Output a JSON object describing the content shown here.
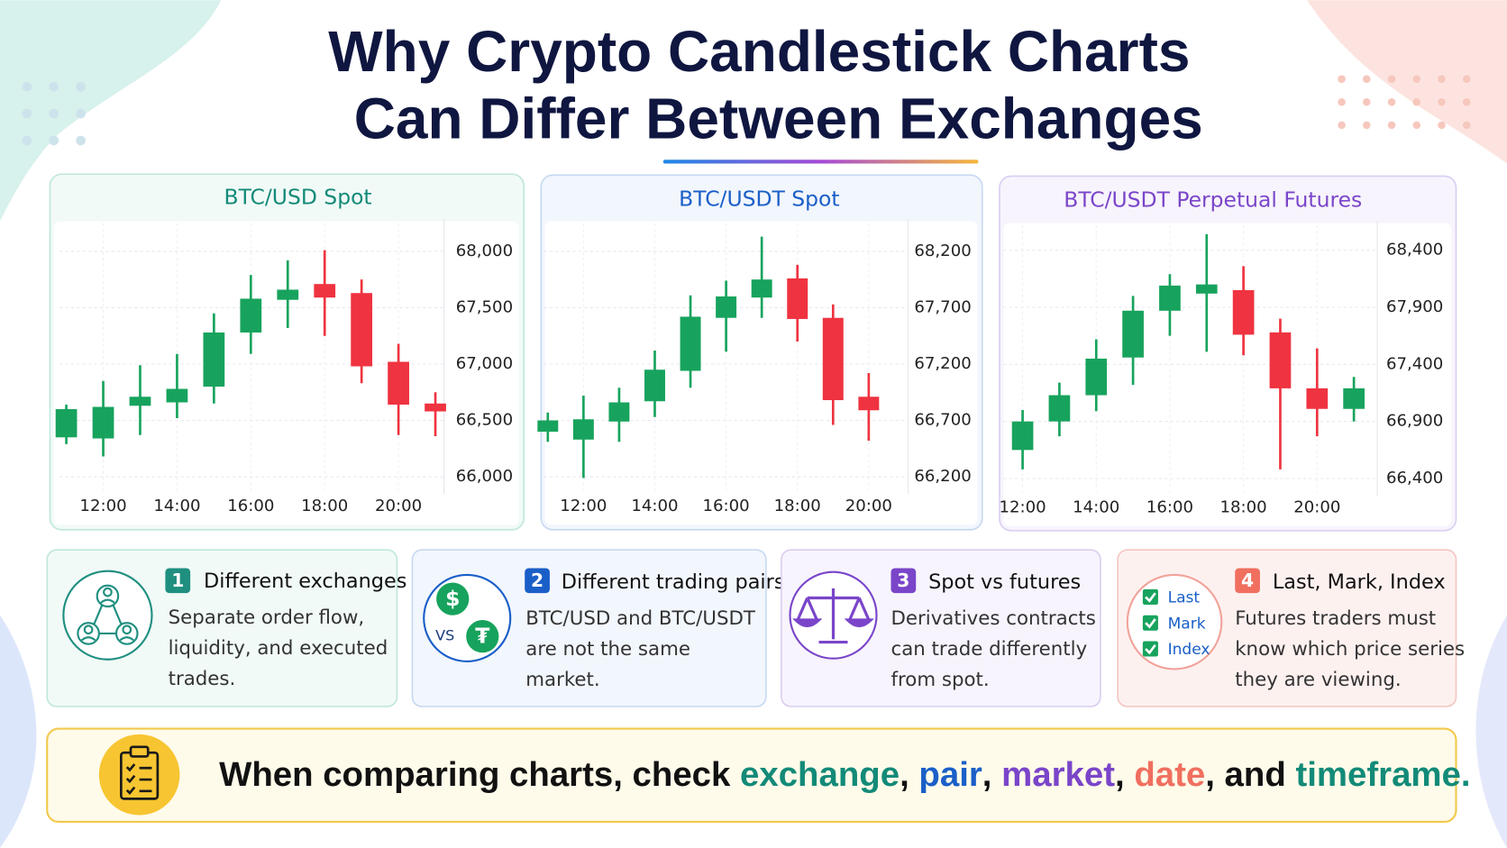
{
  "title": {
    "lines": [
      "Why Crypto Candlestick Charts",
      "Can Differ Between Exchanges"
    ]
  },
  "chart_data": [
    {
      "type": "candlestick",
      "title": "BTC/USD Spot",
      "categories": [
        null,
        "12:00",
        null,
        "14:00",
        null,
        "16:00",
        null,
        "18:00",
        null,
        "20:00",
        null
      ],
      "open": [
        66350,
        66340,
        66630,
        66660,
        66800,
        67280,
        67570,
        67710,
        67630,
        67020,
        66650
      ],
      "high": [
        66640,
        66850,
        66990,
        67090,
        67450,
        67790,
        67920,
        68010,
        67750,
        67180,
        66750
      ],
      "low": [
        66290,
        66180,
        66370,
        66520,
        66650,
        67090,
        67320,
        67250,
        66830,
        66370,
        66360
      ],
      "close": [
        66600,
        66620,
        66710,
        66780,
        67280,
        67580,
        67660,
        67590,
        66980,
        66640,
        66580
      ],
      "up_color": "#17a35d",
      "down_color": "#ef3340",
      "ylim": [
        65880,
        68250
      ],
      "yticks": [
        {
          "value": 66000,
          "label": "66,000"
        },
        {
          "value": 66500,
          "label": "66,500"
        },
        {
          "value": 67000,
          "label": "67,000"
        },
        {
          "value": 67500,
          "label": "67,500"
        },
        {
          "value": 68000,
          "label": "68,000"
        }
      ],
      "grid": true
    },
    {
      "type": "candlestick",
      "title": "BTC/USDT Spot",
      "categories": [
        null,
        "12:00",
        null,
        "14:00",
        null,
        "16:00",
        null,
        "18:00",
        null,
        "20:00"
      ],
      "open": [
        66600,
        66530,
        66690,
        66870,
        67140,
        67610,
        67790,
        67960,
        67610,
        66910
      ],
      "high": [
        66770,
        66920,
        66990,
        67320,
        67810,
        67940,
        68330,
        68080,
        67730,
        67120
      ],
      "low": [
        66510,
        66190,
        66510,
        66730,
        66990,
        67310,
        67610,
        67400,
        66660,
        66520
      ],
      "close": [
        66700,
        66710,
        66860,
        67150,
        67620,
        67800,
        67950,
        67600,
        66880,
        66790
      ],
      "up_color": "#17a35d",
      "down_color": "#ef3340",
      "ylim": [
        66080,
        68450
      ],
      "yticks": [
        {
          "value": 66200,
          "label": "66,200"
        },
        {
          "value": 66700,
          "label": "66,700"
        },
        {
          "value": 67200,
          "label": "67,200"
        },
        {
          "value": 67700,
          "label": "67,700"
        },
        {
          "value": 68200,
          "label": "68,200"
        }
      ],
      "grid": true
    },
    {
      "type": "candlestick",
      "title": "BTC/USDT Perpetual Futures",
      "categories": [
        "12:00",
        null,
        "14:00",
        null,
        "16:00",
        null,
        "18:00",
        null,
        "20:00",
        null
      ],
      "open": [
        66650,
        66900,
        67130,
        67460,
        67870,
        68020,
        68050,
        67680,
        67190,
        67010
      ],
      "high": [
        67000,
        67240,
        67620,
        68000,
        68190,
        68540,
        68260,
        67800,
        67540,
        67290
      ],
      "low": [
        66480,
        66770,
        66990,
        67220,
        67650,
        67510,
        67480,
        66480,
        66770,
        66900
      ],
      "close": [
        66900,
        67130,
        67450,
        67870,
        68090,
        68100,
        67660,
        67190,
        67010,
        67190
      ],
      "up_color": "#17a35d",
      "down_color": "#ef3340",
      "ylim": [
        66280,
        68620
      ],
      "yticks": [
        {
          "value": 66400,
          "label": "66,400"
        },
        {
          "value": 66900,
          "label": "66,900"
        },
        {
          "value": 67400,
          "label": "67,400"
        },
        {
          "value": 67900,
          "label": "67,900"
        },
        {
          "value": 68400,
          "label": "68,400"
        }
      ],
      "grid": true
    }
  ],
  "cards": [
    {
      "number": 1,
      "heading": "Different exchanges",
      "body": [
        "Separate order flow,",
        "liquidity, and executed",
        "trades."
      ]
    },
    {
      "number": 2,
      "heading": "Different trading pairs",
      "body": [
        "BTC/USD and BTC/USDT",
        "are not the same",
        "market."
      ],
      "icon_texts": [
        "$",
        "VS",
        "₮"
      ]
    },
    {
      "number": 3,
      "heading": "Spot vs futures",
      "body": [
        "Derivatives contracts",
        "can trade differently",
        "from spot."
      ]
    },
    {
      "number": 4,
      "heading": "Last, Mark, Index",
      "body": [
        "Futures traders must",
        "know which price series",
        "they are viewing."
      ],
      "icon_texts": [
        "Last",
        "Mark",
        "Index"
      ]
    }
  ],
  "footer": {
    "segments": [
      "When comparing charts, check ",
      "exchange",
      ", ",
      "pair",
      ", ",
      "market",
      ", ",
      "date",
      ", and ",
      "timeframe."
    ]
  }
}
